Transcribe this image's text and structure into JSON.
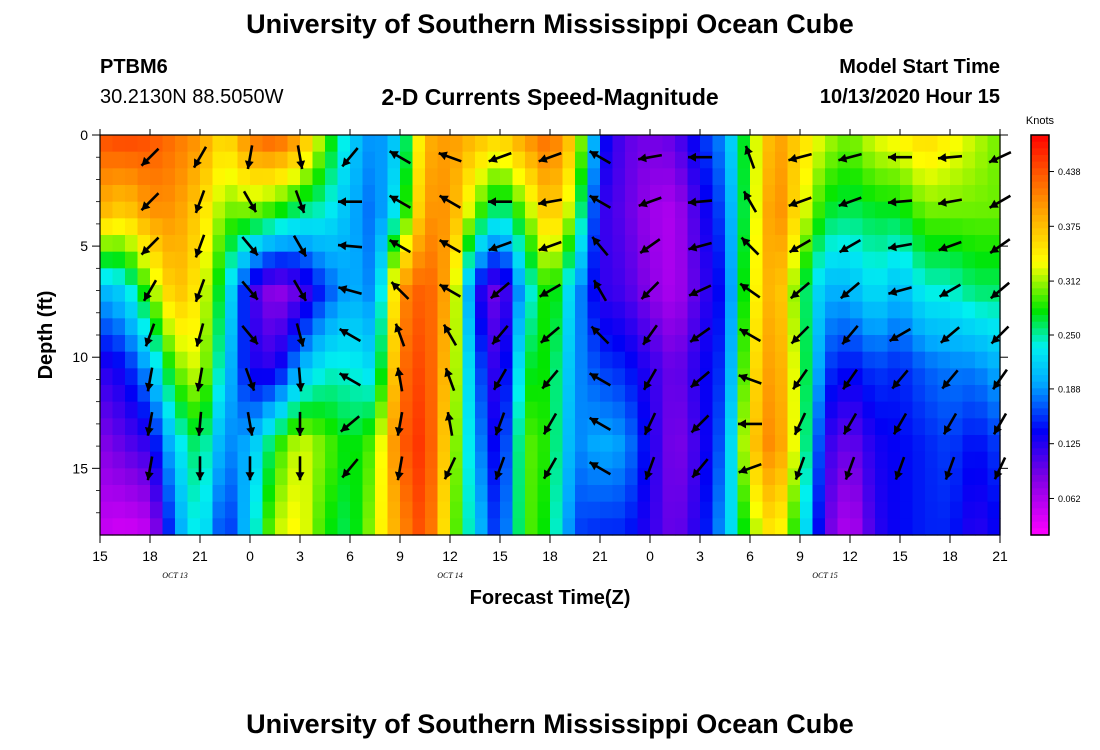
{
  "page": {
    "title": "University of Southern Mississippi Ocean Cube",
    "footer_title": "University of Southern Mississippi Ocean Cube",
    "station_id": "PTBM6",
    "station_coords": "30.2130N 88.5050W",
    "chart_subtitle": "2-D Currents Speed-Magnitude",
    "model_start_label": "Model Start Time",
    "model_start_value": "10/13/2020 Hour 15"
  },
  "chart_data": {
    "type": "heatmap",
    "title": "2-D Currents Speed-Magnitude",
    "xlabel": "Forecast Time(Z)",
    "ylabel": "Depth (ft)",
    "x_hours": [
      0,
      3,
      6,
      9,
      12,
      15,
      18,
      21,
      24,
      27,
      30,
      33,
      36,
      39,
      42,
      45,
      48,
      51,
      54
    ],
    "x_tick_labels": [
      "15",
      "18",
      "21",
      "0",
      "3",
      "6",
      "9",
      "12",
      "15",
      "18",
      "21",
      "0",
      "3",
      "6",
      "9",
      "12",
      "15",
      "18",
      "21"
    ],
    "date_labels": [
      {
        "text": "OCT 13",
        "hour": 4.5
      },
      {
        "text": "OCT 14",
        "hour": 21
      },
      {
        "text": "OCT 15",
        "hour": 43.5
      }
    ],
    "xlim": [
      0,
      54
    ],
    "y_ticks": [
      0,
      5,
      10,
      15
    ],
    "ylim": [
      0,
      18
    ],
    "y_inverted": true,
    "colorbar": {
      "label": "Knots",
      "vmin": 0.02,
      "vmax": 0.48,
      "tick_values": [
        0.062,
        0.125,
        0.188,
        0.25,
        0.312,
        0.375,
        0.438
      ],
      "tick_labels": [
        "0.062",
        "0.125",
        "0.188",
        "0.250",
        "0.312",
        "0.375",
        "0.438"
      ]
    },
    "speed_profile": [
      {
        "hour": 0,
        "values": [
          0.44,
          0.38,
          0.2,
          0.12,
          0.08,
          0.05
        ]
      },
      {
        "hour": 1.5,
        "values": [
          0.45,
          0.36,
          0.22,
          0.14,
          0.1,
          0.04
        ]
      },
      {
        "hour": 3,
        "values": [
          0.44,
          0.4,
          0.3,
          0.2,
          0.12,
          0.05
        ]
      },
      {
        "hour": 4.5,
        "values": [
          0.42,
          0.4,
          0.38,
          0.3,
          0.22,
          0.18
        ]
      },
      {
        "hour": 6,
        "values": [
          0.4,
          0.36,
          0.34,
          0.33,
          0.27,
          0.25
        ]
      },
      {
        "hour": 7.5,
        "values": [
          0.35,
          0.3,
          0.25,
          0.22,
          0.18,
          0.14
        ]
      },
      {
        "hour": 9,
        "values": [
          0.42,
          0.3,
          0.12,
          0.13,
          0.2,
          0.22
        ]
      },
      {
        "hour": 10.5,
        "values": [
          0.44,
          0.28,
          0.07,
          0.12,
          0.28,
          0.32
        ]
      },
      {
        "hour": 12,
        "values": [
          0.4,
          0.25,
          0.1,
          0.2,
          0.33,
          0.34
        ]
      },
      {
        "hour": 13.5,
        "values": [
          0.3,
          0.24,
          0.16,
          0.24,
          0.3,
          0.28
        ]
      },
      {
        "hour": 15,
        "values": [
          0.22,
          0.2,
          0.2,
          0.24,
          0.27,
          0.26
        ]
      },
      {
        "hour": 16.5,
        "values": [
          0.18,
          0.17,
          0.18,
          0.22,
          0.3,
          0.32
        ]
      },
      {
        "hour": 18,
        "values": [
          0.22,
          0.25,
          0.4,
          0.42,
          0.43,
          0.4
        ]
      },
      {
        "hour": 19.5,
        "values": [
          0.38,
          0.4,
          0.44,
          0.45,
          0.46,
          0.45
        ]
      },
      {
        "hour": 21,
        "values": [
          0.4,
          0.4,
          0.38,
          0.36,
          0.34,
          0.32
        ]
      },
      {
        "hour": 22.5,
        "values": [
          0.38,
          0.3,
          0.14,
          0.18,
          0.2,
          0.22
        ]
      },
      {
        "hour": 24,
        "values": [
          0.36,
          0.24,
          0.08,
          0.1,
          0.12,
          0.14
        ]
      },
      {
        "hour": 25.5,
        "values": [
          0.4,
          0.3,
          0.22,
          0.27,
          0.3,
          0.3
        ]
      },
      {
        "hour": 27,
        "values": [
          0.43,
          0.38,
          0.3,
          0.28,
          0.28,
          0.27
        ]
      },
      {
        "hour": 28.5,
        "values": [
          0.36,
          0.3,
          0.2,
          0.19,
          0.18,
          0.16
        ]
      },
      {
        "hour": 30,
        "values": [
          0.15,
          0.12,
          0.12,
          0.16,
          0.2,
          0.15
        ]
      },
      {
        "hour": 31.5,
        "values": [
          0.1,
          0.1,
          0.11,
          0.15,
          0.19,
          0.15
        ]
      },
      {
        "hour": 33,
        "values": [
          0.09,
          0.07,
          0.08,
          0.12,
          0.13,
          0.12
        ]
      },
      {
        "hour": 34.5,
        "values": [
          0.1,
          0.06,
          0.06,
          0.09,
          0.08,
          0.09
        ]
      },
      {
        "hour": 36,
        "values": [
          0.15,
          0.12,
          0.11,
          0.13,
          0.12,
          0.13
        ]
      },
      {
        "hour": 37.5,
        "values": [
          0.19,
          0.17,
          0.15,
          0.16,
          0.18,
          0.2
        ]
      },
      {
        "hour": 39,
        "values": [
          0.3,
          0.3,
          0.32,
          0.34,
          0.36,
          0.3
        ]
      },
      {
        "hour": 40.5,
        "values": [
          0.4,
          0.42,
          0.4,
          0.41,
          0.42,
          0.36
        ]
      },
      {
        "hour": 42,
        "values": [
          0.36,
          0.34,
          0.28,
          0.3,
          0.3,
          0.26
        ]
      },
      {
        "hour": 43.5,
        "values": [
          0.32,
          0.27,
          0.2,
          0.16,
          0.12,
          0.1
        ]
      },
      {
        "hour": 45,
        "values": [
          0.3,
          0.26,
          0.2,
          0.14,
          0.09,
          0.05
        ]
      },
      {
        "hour": 46.5,
        "values": [
          0.33,
          0.27,
          0.23,
          0.16,
          0.13,
          0.12
        ]
      },
      {
        "hour": 48,
        "values": [
          0.34,
          0.27,
          0.2,
          0.15,
          0.14,
          0.14
        ]
      },
      {
        "hour": 49.5,
        "values": [
          0.36,
          0.3,
          0.24,
          0.17,
          0.15,
          0.15
        ]
      },
      {
        "hour": 51,
        "values": [
          0.34,
          0.3,
          0.24,
          0.18,
          0.16,
          0.15
        ]
      },
      {
        "hour": 52.5,
        "values": [
          0.32,
          0.3,
          0.26,
          0.18,
          0.14,
          0.12
        ]
      },
      {
        "hour": 54,
        "values": [
          0.3,
          0.3,
          0.26,
          0.2,
          0.16,
          0.14
        ]
      }
    ],
    "profile_depths": [
      0,
      3.5,
      7,
      10.5,
      14,
      18
    ],
    "vector_directions_deg": [
      {
        "hour": 3,
        "values": [
          225,
          225,
          225,
          210,
          200,
          190,
          190,
          190
        ]
      },
      {
        "hour": 6,
        "values": [
          210,
          200,
          200,
          200,
          195,
          190,
          185,
          180
        ]
      },
      {
        "hour": 9,
        "values": [
          190,
          150,
          140,
          140,
          140,
          160,
          170,
          180
        ]
      },
      {
        "hour": 12,
        "values": [
          170,
          160,
          150,
          150,
          165,
          175,
          180,
          180
        ]
      },
      {
        "hour": 15,
        "values": [
          220,
          270,
          275,
          285,
          300,
          300,
          230,
          220
        ]
      },
      {
        "hour": 18,
        "values": [
          300,
          300,
          300,
          315,
          340,
          350,
          190,
          190
        ]
      },
      {
        "hour": 21,
        "values": [
          290,
          300,
          300,
          300,
          330,
          340,
          350,
          205
        ]
      },
      {
        "hour": 24,
        "values": [
          250,
          270,
          250,
          230,
          220,
          210,
          200,
          200
        ]
      },
      {
        "hour": 27,
        "values": [
          250,
          260,
          250,
          240,
          230,
          220,
          210,
          210
        ]
      },
      {
        "hour": 30,
        "values": [
          300,
          300,
          320,
          330,
          315,
          300,
          300,
          300
        ]
      },
      {
        "hour": 33,
        "values": [
          260,
          250,
          235,
          225,
          215,
          210,
          205,
          200
        ]
      },
      {
        "hour": 36,
        "values": [
          270,
          265,
          255,
          245,
          235,
          230,
          225,
          220
        ]
      },
      {
        "hour": 39,
        "values": [
          340,
          330,
          315,
          305,
          300,
          290,
          270,
          250
        ]
      },
      {
        "hour": 42,
        "values": [
          255,
          250,
          240,
          230,
          225,
          215,
          205,
          200
        ]
      },
      {
        "hour": 45,
        "values": [
          255,
          250,
          240,
          230,
          220,
          215,
          210,
          200
        ]
      },
      {
        "hour": 48,
        "values": [
          270,
          265,
          260,
          255,
          240,
          220,
          210,
          200
        ]
      },
      {
        "hour": 51,
        "values": [
          265,
          260,
          250,
          240,
          230,
          220,
          210,
          200
        ]
      },
      {
        "hour": 54,
        "values": [
          245,
          240,
          235,
          230,
          225,
          215,
          210,
          205
        ]
      }
    ],
    "vector_depths": [
      1,
      3,
      5,
      7,
      9,
      11,
      13,
      15
    ]
  }
}
